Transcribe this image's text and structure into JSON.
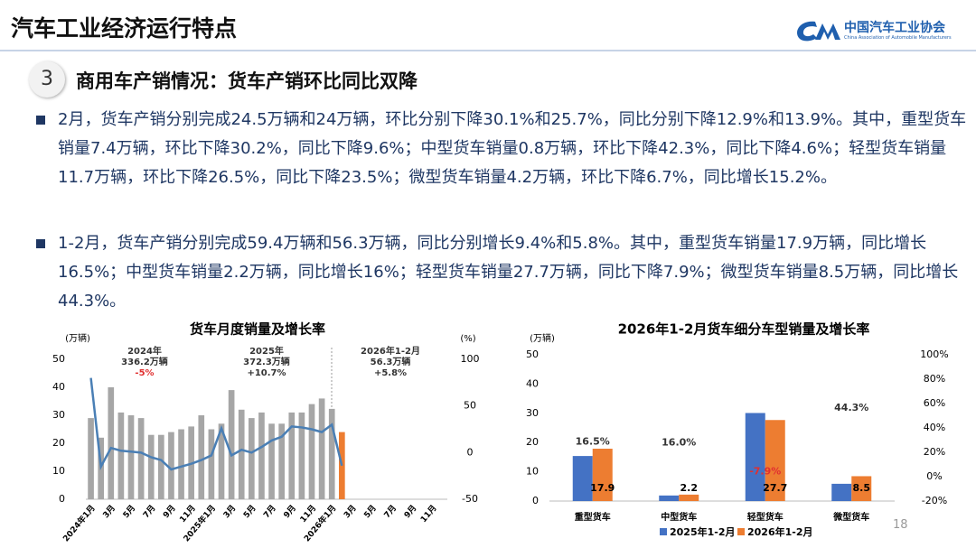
{
  "header": {
    "title": "汽车工业经济运行特点",
    "logo_cn": "中国汽车工业协会",
    "logo_en": "China Association of Automobile Manufacturers"
  },
  "section": {
    "number": "3",
    "title": "商用车产销情况：货车产销环比同比双降"
  },
  "bullets": [
    "2月，货车产销分别完成24.5万辆和24万辆，环比分别下降30.1%和25.7%，同比分别下降12.9%和13.9%。其中，重型货车销量7.4万辆，环比下降30.2%，同比下降9.6%；中型货车销量0.8万辆，环比下降42.3%，同比下降4.6%；轻型货车销量11.7万辆，环比下降26.5%，同比下降23.5%；微型货车销量4.2万辆，环比下降6.7%，同比增长15.2%。",
    "1-2月，货车产销分别完成59.4万辆和56.3万辆，同比分别增长9.4%和5.8%。其中，重型货车销量17.9万辆，同比增长16.5%；中型货车销量2.2万辆，同比增长16%；轻型货车销量27.7万辆，同比下降7.9%；微型货车销量8.5万辆，同比增长44.3%。"
  ],
  "chart_data": [
    {
      "type": "combo",
      "title": "货车月度销量及增长率",
      "y_unit": "(万辆)",
      "y2_unit": "(%)",
      "categories": [
        "2024年1月",
        null,
        "3月",
        null,
        "5月",
        null,
        "7月",
        null,
        "9月",
        null,
        "11月",
        null,
        "2025年1月",
        null,
        "3月",
        null,
        "5月",
        null,
        "7月",
        null,
        "9月",
        null,
        "11月",
        null,
        "2026年1月",
        null,
        "3月",
        null,
        "5月",
        null,
        "7月",
        null,
        "9月",
        null,
        "11月",
        null
      ],
      "series": [
        {
          "kind": "bar",
          "axis": "y",
          "values": [
            29,
            22,
            40,
            31,
            30,
            29,
            23,
            23,
            24,
            25,
            26,
            30,
            25,
            27,
            39,
            32,
            29,
            31,
            27,
            27,
            31,
            31,
            34,
            36,
            32.3,
            24,
            null,
            null,
            null,
            null,
            null,
            null,
            null,
            null,
            null,
            null
          ],
          "colors": [
            "#a6a6a6",
            "#a6a6a6",
            "#a6a6a6",
            "#a6a6a6",
            "#a6a6a6",
            "#a6a6a6",
            "#a6a6a6",
            "#a6a6a6",
            "#a6a6a6",
            "#a6a6a6",
            "#a6a6a6",
            "#a6a6a6",
            "#a6a6a6",
            "#a6a6a6",
            "#a6a6a6",
            "#a6a6a6",
            "#a6a6a6",
            "#a6a6a6",
            "#a6a6a6",
            "#a6a6a6",
            "#a6a6a6",
            "#a6a6a6",
            "#a6a6a6",
            "#a6a6a6",
            "#a6a6a6",
            "#ed7d31",
            null,
            null,
            null,
            null,
            null,
            null,
            null,
            null,
            null,
            null
          ]
        },
        {
          "kind": "line",
          "axis": "y2",
          "color": "#4a7fb5",
          "values": [
            80,
            -15,
            5,
            2,
            1,
            0,
            -5,
            -8,
            -18,
            -15,
            -12,
            -8,
            -3,
            26,
            -3,
            3,
            0,
            6,
            13,
            17,
            28,
            27,
            25,
            22,
            30,
            -14,
            null,
            null,
            null,
            null,
            null,
            null,
            null,
            null,
            null,
            null
          ]
        }
      ],
      "ylim": [
        0,
        50
      ],
      "yticks": [
        0,
        10,
        20,
        30,
        40,
        50
      ],
      "y2lim": [
        -50,
        100
      ],
      "y2ticks": [
        -50,
        0,
        50,
        100
      ],
      "annotations": [
        [
          "2024年",
          "336.2万辆",
          "-5%"
        ],
        [
          "2025年",
          "372.3万辆",
          "+10.7%"
        ],
        [
          "2026年1-2月",
          "56.3万辆",
          "+5.8%"
        ]
      ]
    },
    {
      "type": "bar",
      "title": "2026年1-2月货车细分车型销量及增长率",
      "y_unit": "(万辆)",
      "categories": [
        "重型货车",
        "中型货车",
        "轻型货车",
        "微型货车"
      ],
      "series": [
        {
          "name": "2025年1-2月",
          "color": "#4472c4",
          "values": [
            15.4,
            1.9,
            30.1,
            5.9
          ]
        },
        {
          "name": "2026年1-2月",
          "color": "#ed7d31",
          "values": [
            17.9,
            2.2,
            27.7,
            8.5
          ]
        }
      ],
      "growth": {
        "axis": "y2",
        "values": [
          16.5,
          16.0,
          -7.9,
          44.3
        ],
        "value_labels": [
          "16.5%",
          "16.0%",
          "-7.9%",
          "44.3%"
        ]
      },
      "ylim": [
        0,
        50
      ],
      "yticks": [
        0,
        10,
        20,
        30,
        40,
        50
      ],
      "y2lim": [
        -20,
        100
      ],
      "y2ticks": [
        {
          "value": -20,
          "label": "-20%"
        },
        {
          "value": 0,
          "label": "0%"
        },
        {
          "value": 20,
          "label": "20%"
        },
        {
          "value": 40,
          "label": "40%"
        },
        {
          "value": 60,
          "label": "60%"
        },
        {
          "value": 80,
          "label": "80%"
        },
        {
          "value": 100,
          "label": "100%"
        }
      ]
    }
  ],
  "footer": {
    "page_number": "18"
  }
}
